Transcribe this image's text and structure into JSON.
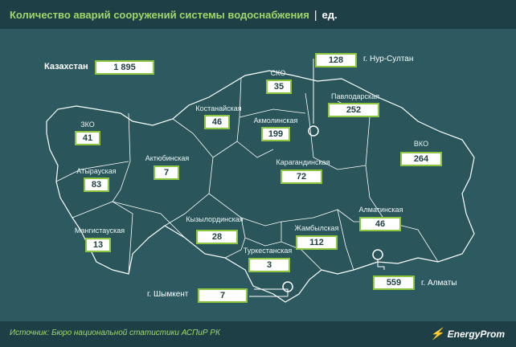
{
  "header": {
    "title": "Количество аварий сооружений системы водоснабжения",
    "separator": "|",
    "unit": "ед."
  },
  "total": {
    "label": "Казахстан",
    "value": "1 895"
  },
  "regions": [
    {
      "id": "zko",
      "name": "ЗКО",
      "value": "41"
    },
    {
      "id": "atyrau",
      "name": "Атырауская",
      "value": "83"
    },
    {
      "id": "mangystau",
      "name": "Мангистауская",
      "value": "13"
    },
    {
      "id": "aktobe",
      "name": "Актюбинская",
      "value": "7"
    },
    {
      "id": "kostanay",
      "name": "Костанайская",
      "value": "46"
    },
    {
      "id": "sko",
      "name": "СКО",
      "value": "35"
    },
    {
      "id": "akmola",
      "name": "Акмолинская",
      "value": "199"
    },
    {
      "id": "pavlodar",
      "name": "Павлодарская",
      "value": "252"
    },
    {
      "id": "vko",
      "name": "ВКО",
      "value": "264"
    },
    {
      "id": "karaganda",
      "name": "Карагандинская",
      "value": "72"
    },
    {
      "id": "kyzylorda",
      "name": "Кызылординская",
      "value": "28"
    },
    {
      "id": "zhambyl",
      "name": "Жамбылская",
      "value": "112"
    },
    {
      "id": "almaty",
      "name": "Алматинская",
      "value": "46"
    },
    {
      "id": "turkestan",
      "name": "Туркестанская",
      "value": "3"
    }
  ],
  "cities": [
    {
      "id": "nursultan",
      "name": "г. Нур-Султан",
      "value": "128"
    },
    {
      "id": "almaty-city",
      "name": "г. Алматы",
      "value": "559"
    },
    {
      "id": "shymkent",
      "name": "г. Шымкент",
      "value": "7"
    }
  ],
  "footer": {
    "source": "Источник: Бюро национальной статистики АСПиР РК",
    "logo": "EnergyProm"
  },
  "colors": {
    "background": "#2c5a60",
    "header": "#1e3f45",
    "accent": "#9fd86a",
    "box_border": "#8cc63f",
    "land": "#2a555b",
    "border_line": "#ffffff"
  }
}
